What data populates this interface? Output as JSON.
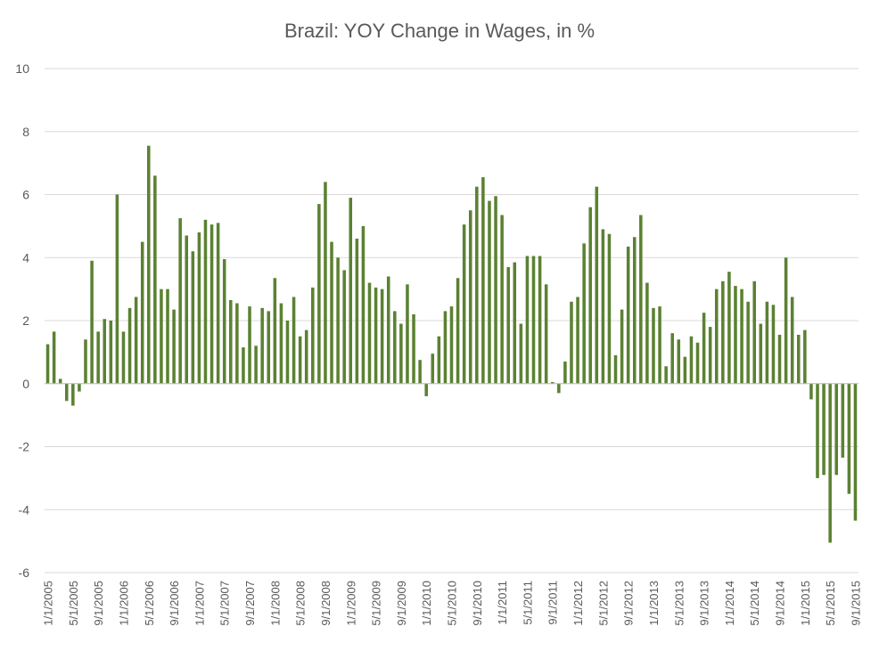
{
  "chart_data": {
    "type": "bar",
    "title": "Brazil: YOY Change in Wages, in %",
    "xlabel": "",
    "ylabel": "",
    "ylim": [
      -6,
      10
    ],
    "yticks": [
      10,
      8,
      6,
      4,
      2,
      0,
      -2,
      -4,
      -6
    ],
    "grid": true,
    "legend": "none",
    "bar_color": "#5b8132",
    "tick_labels": [
      "1/1/2005",
      "5/1/2005",
      "9/1/2005",
      "1/1/2006",
      "5/1/2006",
      "9/1/2006",
      "1/1/2007",
      "5/1/2007",
      "9/1/2007",
      "1/1/2008",
      "5/1/2008",
      "9/1/2008",
      "1/1/2009",
      "5/1/2009",
      "9/1/2009",
      "1/1/2010",
      "5/1/2010",
      "9/1/2010",
      "1/1/2011",
      "5/1/2011",
      "9/1/2011",
      "1/1/2012",
      "5/1/2012",
      "9/1/2012",
      "1/1/2013",
      "5/1/2013",
      "9/1/2013",
      "1/1/2014",
      "5/1/2014",
      "9/1/2014",
      "1/1/2015",
      "5/1/2015",
      "9/1/2015"
    ],
    "tick_every": 4,
    "series": [
      {
        "values": [
          1.25,
          1.65,
          0.15,
          -0.55,
          -0.7,
          -0.25,
          1.4,
          3.9,
          1.65,
          2.05,
          2.0,
          6.0,
          1.65,
          2.4,
          2.75,
          4.5,
          7.55,
          6.6,
          3.0,
          3.0,
          2.35,
          5.25,
          4.7,
          4.2,
          4.8,
          5.2,
          5.05,
          5.1,
          3.95,
          2.65,
          2.55,
          1.15,
          2.45,
          1.2,
          2.4,
          2.3,
          3.35,
          2.55,
          2.0,
          2.75,
          1.5,
          1.7,
          3.05,
          5.7,
          6.4,
          4.5,
          4.0,
          3.6,
          5.9,
          4.6,
          5.0,
          3.2,
          3.05,
          3.0,
          3.4,
          2.3,
          1.9,
          3.15,
          2.2,
          0.75,
          -0.4,
          0.95,
          1.5,
          2.3,
          2.45,
          3.35,
          5.05,
          5.5,
          6.25,
          6.55,
          5.8,
          5.95,
          5.35,
          3.7,
          3.85,
          1.9,
          4.05,
          4.05,
          4.05,
          3.15,
          0.05,
          -0.3,
          0.7,
          2.6,
          2.75,
          4.45,
          5.6,
          6.25,
          4.9,
          4.75,
          0.9,
          2.35,
          4.35,
          4.65,
          5.35,
          3.2,
          2.4,
          2.45,
          0.55,
          1.6,
          1.4,
          0.85,
          1.5,
          1.3,
          2.25,
          1.8,
          3.0,
          3.25,
          3.55,
          3.1,
          3.0,
          2.6,
          3.25,
          1.9,
          2.6,
          2.5,
          1.55,
          4.0,
          2.75,
          1.55,
          1.7,
          -0.5,
          -3.0,
          -2.9,
          -5.05,
          -2.9,
          -2.35,
          -3.5,
          -4.35
        ]
      }
    ]
  }
}
